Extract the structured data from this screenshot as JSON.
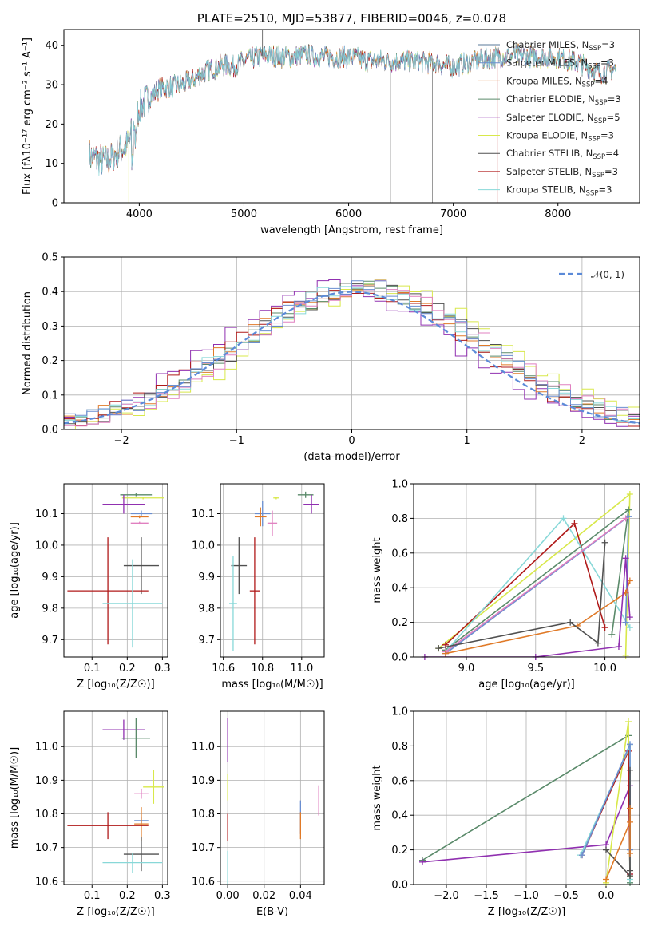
{
  "colors": {
    "chabrier_miles": "#5a7a9a",
    "salpeter_miles": "#6a8ed0",
    "kroupa_miles": "#e07a28",
    "chabrier_elodie": "#5a8a6a",
    "salpeter_elodie": "#9030b0",
    "kroupa_elodie": "#d8e84a",
    "chabrier_stelib": "#505050",
    "salpeter_stelib": "#b01a1a",
    "kroupa_stelib": "#88d8d8",
    "pink": "#e080c0",
    "gauss": "#5b8ad8"
  },
  "chart_data": [
    {
      "type": "line",
      "panel": "spectrum",
      "title": "PLATE=2510, MJD=53877, FIBERID=0046, z=0.078",
      "xlabel": "wavelength [Angstrom, rest frame]",
      "ylabel": "Flux [fλ10⁻¹⁷ erg cm⁻² s⁻¹ A⁻¹]",
      "xlim": [
        3280,
        8780
      ],
      "ylim": [
        0,
        44
      ],
      "xticks": [
        4000,
        5000,
        6000,
        7000,
        8000
      ],
      "yticks": [
        0,
        10,
        20,
        30,
        40
      ],
      "grid": false,
      "legend_placement": "top-right",
      "continuum": {
        "x": [
          3520,
          3600,
          3700,
          3800,
          3900,
          3950,
          4000,
          4100,
          4200,
          4300,
          4400,
          4500,
          4600,
          4700,
          4800,
          4900,
          5000,
          5200,
          5400,
          5600,
          5800,
          6000,
          6200,
          6400,
          6600,
          6800,
          7000,
          7200,
          7400,
          7600,
          7800,
          8000,
          8200,
          8400,
          8550
        ],
        "y": [
          12,
          11,
          10.5,
          13,
          15,
          20,
          24,
          27,
          29,
          29.5,
          30,
          31,
          33,
          34,
          35,
          34.5,
          36,
          37.5,
          37,
          37.5,
          37,
          37,
          36,
          36,
          36,
          35.5,
          34.5,
          36,
          37,
          37.5,
          37,
          37,
          35.5,
          33,
          34
        ]
      },
      "legend": [
        {
          "label": "Chabrier MILES, N",
          "sub": "SSP",
          "suffix": "=3",
          "color_key": "chabrier_miles"
        },
        {
          "label": "Salpeter MILES, N",
          "sub": "SSP",
          "suffix": "=3",
          "color_key": "salpeter_miles"
        },
        {
          "label": "Kroupa MILES, N",
          "sub": "SSP",
          "suffix": "=4",
          "color_key": "kroupa_miles"
        },
        {
          "label": "Chabrier ELODIE, N",
          "sub": "SSP",
          "suffix": "=3",
          "color_key": "chabrier_elodie"
        },
        {
          "label": "Salpeter ELODIE, N",
          "sub": "SSP",
          "suffix": "=5",
          "color_key": "salpeter_elodie"
        },
        {
          "label": "Kroupa ELODIE, N",
          "sub": "SSP",
          "suffix": "=3",
          "color_key": "kroupa_elodie"
        },
        {
          "label": "Chabrier STELIB, N",
          "sub": "SSP",
          "suffix": "=4",
          "color_key": "chabrier_stelib"
        },
        {
          "label": "Salpeter STELIB, N",
          "sub": "SSP",
          "suffix": "=3",
          "color_key": "salpeter_stelib"
        },
        {
          "label": "Kroupa STELIB, N",
          "sub": "SSP",
          "suffix": "=3",
          "color_key": "kroupa_stelib"
        }
      ]
    },
    {
      "type": "line",
      "panel": "residuals",
      "xlabel": "(data-model)/error",
      "ylabel": "Normed distribution",
      "xlim": [
        -2.5,
        2.5
      ],
      "ylim": [
        0,
        0.5
      ],
      "xticks": [
        -2,
        -1,
        0,
        1,
        2
      ],
      "xtick_labels": [
        "−2",
        "−1",
        "0",
        "1",
        "2"
      ],
      "yticks": [
        0.0,
        0.1,
        0.2,
        0.3,
        0.4,
        0.5
      ],
      "ytick_labels": [
        "0.0",
        "0.1",
        "0.2",
        "0.3",
        "0.4",
        "0.5"
      ],
      "grid": true,
      "legend_placement": "top-right",
      "gauss_label": "𝒩(0, 1)",
      "bin_width": 0.1
    },
    {
      "type": "scatter",
      "panel": "age-vs-Z",
      "xlabel": "Z [log₁₀(Z/Z☉)]",
      "ylabel": "age  [log₁₀(age/yr)]",
      "xlim": [
        0.02,
        0.315
      ],
      "ylim": [
        9.645,
        10.195
      ],
      "xticks": [
        0.1,
        0.2,
        0.3
      ],
      "xtick_labels": [
        "0.1",
        "0.2",
        "0.3"
      ],
      "yticks": [
        9.7,
        9.8,
        9.9,
        10.0,
        10.1
      ],
      "ytick_labels": [
        "9.7",
        "9.8",
        "9.9",
        "10.0",
        "10.1"
      ],
      "grid": true,
      "points": [
        {
          "x": 0.225,
          "y": 10.16,
          "xerr": 0.045,
          "yerr": 0.0,
          "c": "chabrier_elodie"
        },
        {
          "x": 0.245,
          "y": 10.15,
          "xerr": 0.06,
          "yerr": 0.0,
          "c": "kroupa_elodie"
        },
        {
          "x": 0.19,
          "y": 10.13,
          "xerr": 0.06,
          "yerr": 0.03,
          "c": "salpeter_elodie"
        },
        {
          "x": 0.24,
          "y": 10.1,
          "xerr": 0.03,
          "yerr": 0.01,
          "c": "salpeter_miles"
        },
        {
          "x": 0.235,
          "y": 10.09,
          "xerr": 0.025,
          "yerr": 0.0,
          "c": "kroupa_miles"
        },
        {
          "x": 0.235,
          "y": 10.07,
          "xerr": 0.025,
          "yerr": 0.0,
          "c": "pink"
        },
        {
          "x": 0.24,
          "y": 9.935,
          "xerr": 0.05,
          "yerr": 0.09,
          "c": "chabrier_stelib"
        },
        {
          "x": 0.145,
          "y": 9.855,
          "xerr": 0.115,
          "yerr": 0.17,
          "c": "salpeter_stelib"
        },
        {
          "x": 0.215,
          "y": 9.815,
          "xerr": 0.085,
          "yerr": 0.14,
          "c": "kroupa_stelib"
        }
      ]
    },
    {
      "type": "scatter",
      "panel": "age-vs-mass",
      "xlabel": "mass [log₁₀(M/M☉)]",
      "ylabel": "",
      "xlim": [
        10.585,
        11.115
      ],
      "ylim": [
        9.645,
        10.195
      ],
      "xticks": [
        10.6,
        10.8,
        11.0
      ],
      "xtick_labels": [
        "10.6",
        "10.8",
        "11.0"
      ],
      "yticks": [
        9.7,
        9.8,
        9.9,
        10.0,
        10.1
      ],
      "ytick_labels": [
        "9.7",
        "9.8",
        "9.9",
        "10.0",
        "10.1"
      ],
      "grid": true,
      "points": [
        {
          "x": 11.02,
          "y": 10.16,
          "xerr": 0.04,
          "yerr": 0.01,
          "c": "chabrier_elodie"
        },
        {
          "x": 10.87,
          "y": 10.15,
          "xerr": 0.015,
          "yerr": 0.0,
          "c": "kroupa_elodie"
        },
        {
          "x": 11.05,
          "y": 10.13,
          "xerr": 0.04,
          "yerr": 0.03,
          "c": "salpeter_elodie"
        },
        {
          "x": 10.8,
          "y": 10.1,
          "xerr": 0.04,
          "yerr": 0.04,
          "c": "salpeter_miles"
        },
        {
          "x": 10.79,
          "y": 10.09,
          "xerr": 0.03,
          "yerr": 0.03,
          "c": "kroupa_miles"
        },
        {
          "x": 10.85,
          "y": 10.07,
          "xerr": 0.025,
          "yerr": 0.04,
          "c": "pink"
        },
        {
          "x": 10.68,
          "y": 9.935,
          "xerr": 0.04,
          "yerr": 0.09,
          "c": "chabrier_stelib"
        },
        {
          "x": 10.76,
          "y": 9.855,
          "xerr": 0.025,
          "yerr": 0.17,
          "c": "salpeter_stelib"
        },
        {
          "x": 10.65,
          "y": 9.815,
          "xerr": 0.02,
          "yerr": 0.15,
          "c": "kroupa_stelib"
        }
      ]
    },
    {
      "type": "line",
      "panel": "weight-vs-age",
      "xlabel": "age  [log₁₀(age/yr)]",
      "ylabel": "mass weight",
      "xlim": [
        8.62,
        10.25
      ],
      "ylim": [
        0,
        1.0
      ],
      "xticks": [
        9.0,
        9.5,
        10.0
      ],
      "xtick_labels": [
        "9.0",
        "9.5",
        "10.0"
      ],
      "yticks": [
        0.0,
        0.2,
        0.4,
        0.6,
        0.8,
        1.0
      ],
      "ytick_labels": [
        "0.0",
        "0.2",
        "0.4",
        "0.6",
        "0.8",
        "1.0"
      ],
      "grid": true,
      "series": [
        {
          "c": "kroupa_elodie",
          "x": [
            8.8,
            10.18,
            10.15
          ],
          "y": [
            0.05,
            0.94,
            0.01
          ]
        },
        {
          "c": "chabrier_elodie",
          "x": [
            8.85,
            10.17,
            10.05
          ],
          "y": [
            0.04,
            0.85,
            0.13
          ]
        },
        {
          "c": "salpeter_stelib",
          "x": [
            8.85,
            9.78,
            10.0
          ],
          "y": [
            0.07,
            0.77,
            0.17
          ]
        },
        {
          "c": "kroupa_stelib",
          "x": [
            8.85,
            9.7,
            10.18
          ],
          "y": [
            0.03,
            0.8,
            0.17
          ]
        },
        {
          "c": "salpeter_miles",
          "x": [
            8.85,
            10.17,
            10.15
          ],
          "y": [
            0.02,
            0.81,
            0.2
          ]
        },
        {
          "c": "pink",
          "x": [
            8.85,
            10.15
          ],
          "y": [
            0.03,
            0.8
          ]
        },
        {
          "c": "kroupa_miles",
          "x": [
            8.85,
            9.8,
            10.15,
            10.18
          ],
          "y": [
            0.02,
            0.18,
            0.37,
            0.44
          ]
        },
        {
          "c": "chabrier_stelib",
          "x": [
            8.8,
            9.75,
            9.95,
            10.0
          ],
          "y": [
            0.05,
            0.2,
            0.08,
            0.66
          ]
        },
        {
          "c": "salpeter_elodie",
          "x": [
            8.7,
            9.5,
            10.1,
            10.15,
            10.18
          ],
          "y": [
            0.0,
            0.0,
            0.06,
            0.57,
            0.23
          ]
        }
      ]
    },
    {
      "type": "scatter",
      "panel": "mass-vs-Z",
      "xlabel": "Z [log₁₀(Z/Z☉)]",
      "ylabel": "mass [log₁₀(M/M☉)]",
      "xlim": [
        0.02,
        0.315
      ],
      "ylim": [
        10.59,
        11.105
      ],
      "xticks": [
        0.1,
        0.2,
        0.3
      ],
      "xtick_labels": [
        "0.1",
        "0.2",
        "0.3"
      ],
      "yticks": [
        10.6,
        10.7,
        10.8,
        10.9,
        11.0
      ],
      "ytick_labels": [
        "10.6",
        "10.7",
        "10.8",
        "10.9",
        "11.0"
      ],
      "grid": true,
      "points": [
        {
          "x": 0.19,
          "y": 11.05,
          "xerr": 0.06,
          "yerr": 0.03,
          "c": "salpeter_elodie"
        },
        {
          "x": 0.225,
          "y": 11.025,
          "xerr": 0.04,
          "yerr": 0.06,
          "c": "chabrier_elodie"
        },
        {
          "x": 0.275,
          "y": 10.88,
          "xerr": 0.03,
          "yerr": 0.05,
          "c": "kroupa_elodie"
        },
        {
          "x": 0.24,
          "y": 10.86,
          "xerr": 0.02,
          "yerr": 0.015,
          "c": "pink"
        },
        {
          "x": 0.24,
          "y": 10.78,
          "xerr": 0.02,
          "yerr": 0.01,
          "c": "salpeter_miles"
        },
        {
          "x": 0.24,
          "y": 10.77,
          "xerr": 0.02,
          "yerr": 0.05,
          "c": "kroupa_miles"
        },
        {
          "x": 0.145,
          "y": 10.765,
          "xerr": 0.115,
          "yerr": 0.04,
          "c": "salpeter_stelib"
        },
        {
          "x": 0.24,
          "y": 10.68,
          "xerr": 0.05,
          "yerr": 0.05,
          "c": "chabrier_stelib"
        },
        {
          "x": 0.215,
          "y": 10.655,
          "xerr": 0.085,
          "yerr": 0.03,
          "c": "kroupa_stelib"
        }
      ]
    },
    {
      "type": "scatter",
      "panel": "mass-vs-EBV",
      "xlabel": "E(B-V)",
      "ylabel": "",
      "xlim": [
        -0.004,
        0.053
      ],
      "ylim": [
        10.59,
        11.105
      ],
      "xticks": [
        0.0,
        0.02,
        0.04
      ],
      "xtick_labels": [
        "0.00",
        "0.02",
        "0.04"
      ],
      "yticks": [
        10.6,
        10.7,
        10.8,
        10.9,
        11.0
      ],
      "ytick_labels": [
        "10.6",
        "10.7",
        "10.8",
        "10.9",
        "11.0"
      ],
      "grid": true,
      "points": [
        {
          "x": 0.0,
          "y": 11.02,
          "xerr": 0.0,
          "yerr": 0.065,
          "c": "salpeter_elodie"
        },
        {
          "x": 0.0,
          "y": 10.88,
          "xerr": 0.0,
          "yerr": 0.04,
          "c": "kroupa_elodie"
        },
        {
          "x": 0.0,
          "y": 10.76,
          "xerr": 0.0,
          "yerr": 0.04,
          "c": "salpeter_stelib"
        },
        {
          "x": 0.0,
          "y": 10.64,
          "xerr": 0.0,
          "yerr": 0.05,
          "c": "kroupa_stelib"
        },
        {
          "x": 0.04,
          "y": 10.79,
          "xerr": 0.0,
          "yerr": 0.05,
          "c": "salpeter_miles"
        },
        {
          "x": 0.04,
          "y": 10.765,
          "xerr": 0.0,
          "yerr": 0.04,
          "c": "kroupa_miles"
        },
        {
          "x": 0.05,
          "y": 10.84,
          "xerr": 0.0,
          "yerr": 0.045,
          "c": "pink"
        }
      ]
    },
    {
      "type": "line",
      "panel": "weight-vs-Z",
      "xlabel": "Z [log₁₀(Z/Z☉)]",
      "ylabel": "mass weight",
      "xlim": [
        -2.41,
        0.42
      ],
      "ylim": [
        0,
        1.0
      ],
      "xticks": [
        -2.0,
        -1.5,
        -1.0,
        -0.5,
        0.0
      ],
      "xtick_labels": [
        "−2.0",
        "−1.5",
        "−1.0",
        "−0.5",
        "0.0"
      ],
      "yticks": [
        0.0,
        0.2,
        0.4,
        0.6,
        0.8,
        1.0
      ],
      "ytick_labels": [
        "0.0",
        "0.2",
        "0.4",
        "0.6",
        "0.8",
        "1.0"
      ],
      "grid": true,
      "series": [
        {
          "c": "chabrier_elodie",
          "x": [
            -2.3,
            0.28,
            0.3
          ],
          "y": [
            0.14,
            0.86,
            0.01
          ]
        },
        {
          "c": "salpeter_elodie",
          "x": [
            -2.3,
            0.0,
            0.3,
            0.3
          ],
          "y": [
            0.13,
            0.23,
            0.57,
            0.06
          ]
        },
        {
          "c": "kroupa_elodie",
          "x": [
            0.0,
            0.28,
            0.3
          ],
          "y": [
            0.01,
            0.94,
            0.05
          ]
        },
        {
          "c": "salpeter_stelib",
          "x": [
            -0.3,
            0.28,
            0.3
          ],
          "y": [
            0.17,
            0.77,
            0.06
          ]
        },
        {
          "c": "kroupa_stelib",
          "x": [
            -0.32,
            0.3,
            0.3
          ],
          "y": [
            0.17,
            0.8,
            0.03
          ]
        },
        {
          "c": "salpeter_miles",
          "x": [
            -0.3,
            0.3,
            0.3
          ],
          "y": [
            0.17,
            0.81,
            0.2
          ]
        },
        {
          "c": "chabrier_stelib",
          "x": [
            0.0,
            0.3,
            0.3,
            0.3
          ],
          "y": [
            0.2,
            0.05,
            0.66,
            0.08
          ]
        },
        {
          "c": "kroupa_miles",
          "x": [
            0.0,
            0.3,
            0.3,
            0.3
          ],
          "y": [
            0.03,
            0.36,
            0.44,
            0.18
          ]
        }
      ]
    }
  ]
}
